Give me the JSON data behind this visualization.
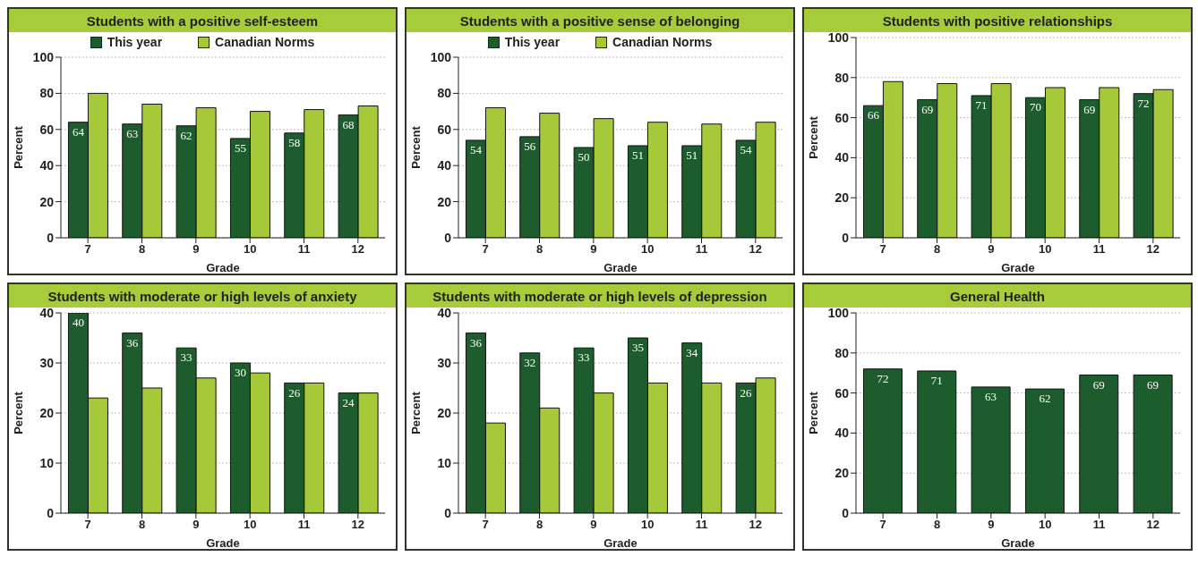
{
  "chart_data": [
    {
      "type": "bar",
      "title": "Students with a positive self-esteem",
      "xlabel": "Grade",
      "ylabel": "Percent",
      "categories": [
        "7",
        "8",
        "9",
        "10",
        "11",
        "12"
      ],
      "series": [
        {
          "name": "This year",
          "color": "#1d5c2c",
          "values": [
            64,
            63,
            62,
            55,
            58,
            68
          ],
          "value_labels": [
            "64",
            "63",
            "62",
            "55",
            "58",
            "68"
          ]
        },
        {
          "name": "Canadian Norms",
          "color": "#a6c93a",
          "values": [
            80,
            74,
            72,
            70,
            71,
            73
          ]
        }
      ],
      "ylim": [
        0,
        100
      ],
      "yticks": [
        0,
        20,
        40,
        60,
        80,
        100
      ],
      "grid": "y",
      "legend": "top"
    },
    {
      "type": "bar",
      "title": "Students with a positive sense of belonging",
      "xlabel": "Grade",
      "ylabel": "Percent",
      "categories": [
        "7",
        "8",
        "9",
        "10",
        "11",
        "12"
      ],
      "series": [
        {
          "name": "This year",
          "color": "#1d5c2c",
          "values": [
            54,
            56,
            50,
            51,
            51,
            54
          ],
          "value_labels": [
            "54",
            "56",
            "50",
            "51",
            "51",
            "54"
          ]
        },
        {
          "name": "Canadian Norms",
          "color": "#a6c93a",
          "values": [
            72,
            69,
            66,
            64,
            63,
            64
          ]
        }
      ],
      "ylim": [
        0,
        100
      ],
      "yticks": [
        0,
        20,
        40,
        60,
        80,
        100
      ],
      "grid": "y",
      "legend": "top"
    },
    {
      "type": "bar",
      "title": "Students with positive relationships",
      "xlabel": "Grade",
      "ylabel": "Percent",
      "categories": [
        "7",
        "8",
        "9",
        "10",
        "11",
        "12"
      ],
      "series": [
        {
          "color": "#1d5c2c",
          "values": [
            66,
            69,
            71,
            70,
            69,
            72
          ],
          "value_labels": [
            "66",
            "69",
            "71",
            "70",
            "69",
            "72"
          ]
        },
        {
          "color": "#a6c93a",
          "values": [
            78,
            77,
            77,
            75,
            75,
            74
          ]
        }
      ],
      "ylim": [
        0,
        100
      ],
      "yticks": [
        0,
        20,
        40,
        60,
        80,
        100
      ],
      "grid": "y"
    },
    {
      "type": "bar",
      "title": "Students with moderate or high levels of anxiety",
      "xlabel": "Grade",
      "ylabel": "Percent",
      "categories": [
        "7",
        "8",
        "9",
        "10",
        "11",
        "12"
      ],
      "series": [
        {
          "color": "#1d5c2c",
          "values": [
            40,
            36,
            33,
            30,
            26,
            24
          ],
          "value_labels": [
            "40",
            "36",
            "33",
            "30",
            "26",
            "24"
          ]
        },
        {
          "color": "#a6c93a",
          "values": [
            23,
            25,
            27,
            28,
            26,
            24
          ]
        }
      ],
      "ylim": [
        0,
        40
      ],
      "yticks": [
        0,
        10,
        20,
        30,
        40
      ],
      "grid": "y"
    },
    {
      "type": "bar",
      "title": "Students with moderate or high levels of depression",
      "xlabel": "Grade",
      "ylabel": "Percent",
      "categories": [
        "7",
        "8",
        "9",
        "10",
        "11",
        "12"
      ],
      "series": [
        {
          "color": "#1d5c2c",
          "values": [
            36,
            32,
            33,
            35,
            34,
            26
          ],
          "value_labels": [
            "36",
            "32",
            "33",
            "35",
            "34",
            "26"
          ]
        },
        {
          "color": "#a6c93a",
          "values": [
            18,
            21,
            24,
            26,
            26,
            27
          ]
        }
      ],
      "ylim": [
        0,
        40
      ],
      "yticks": [
        0,
        10,
        20,
        30,
        40
      ],
      "grid": "y"
    },
    {
      "type": "bar",
      "title": "General Health",
      "xlabel": "Grade",
      "ylabel": "Percent",
      "categories": [
        "7",
        "8",
        "9",
        "10",
        "11",
        "12"
      ],
      "series": [
        {
          "color": "#1d5c2c",
          "values": [
            72,
            71,
            63,
            62,
            69,
            69
          ],
          "value_labels": [
            "72",
            "71",
            "63",
            "62",
            "69",
            "69"
          ]
        }
      ],
      "ylim": [
        0,
        100
      ],
      "yticks": [
        0,
        20,
        40,
        60,
        80,
        100
      ],
      "grid": "y"
    }
  ]
}
